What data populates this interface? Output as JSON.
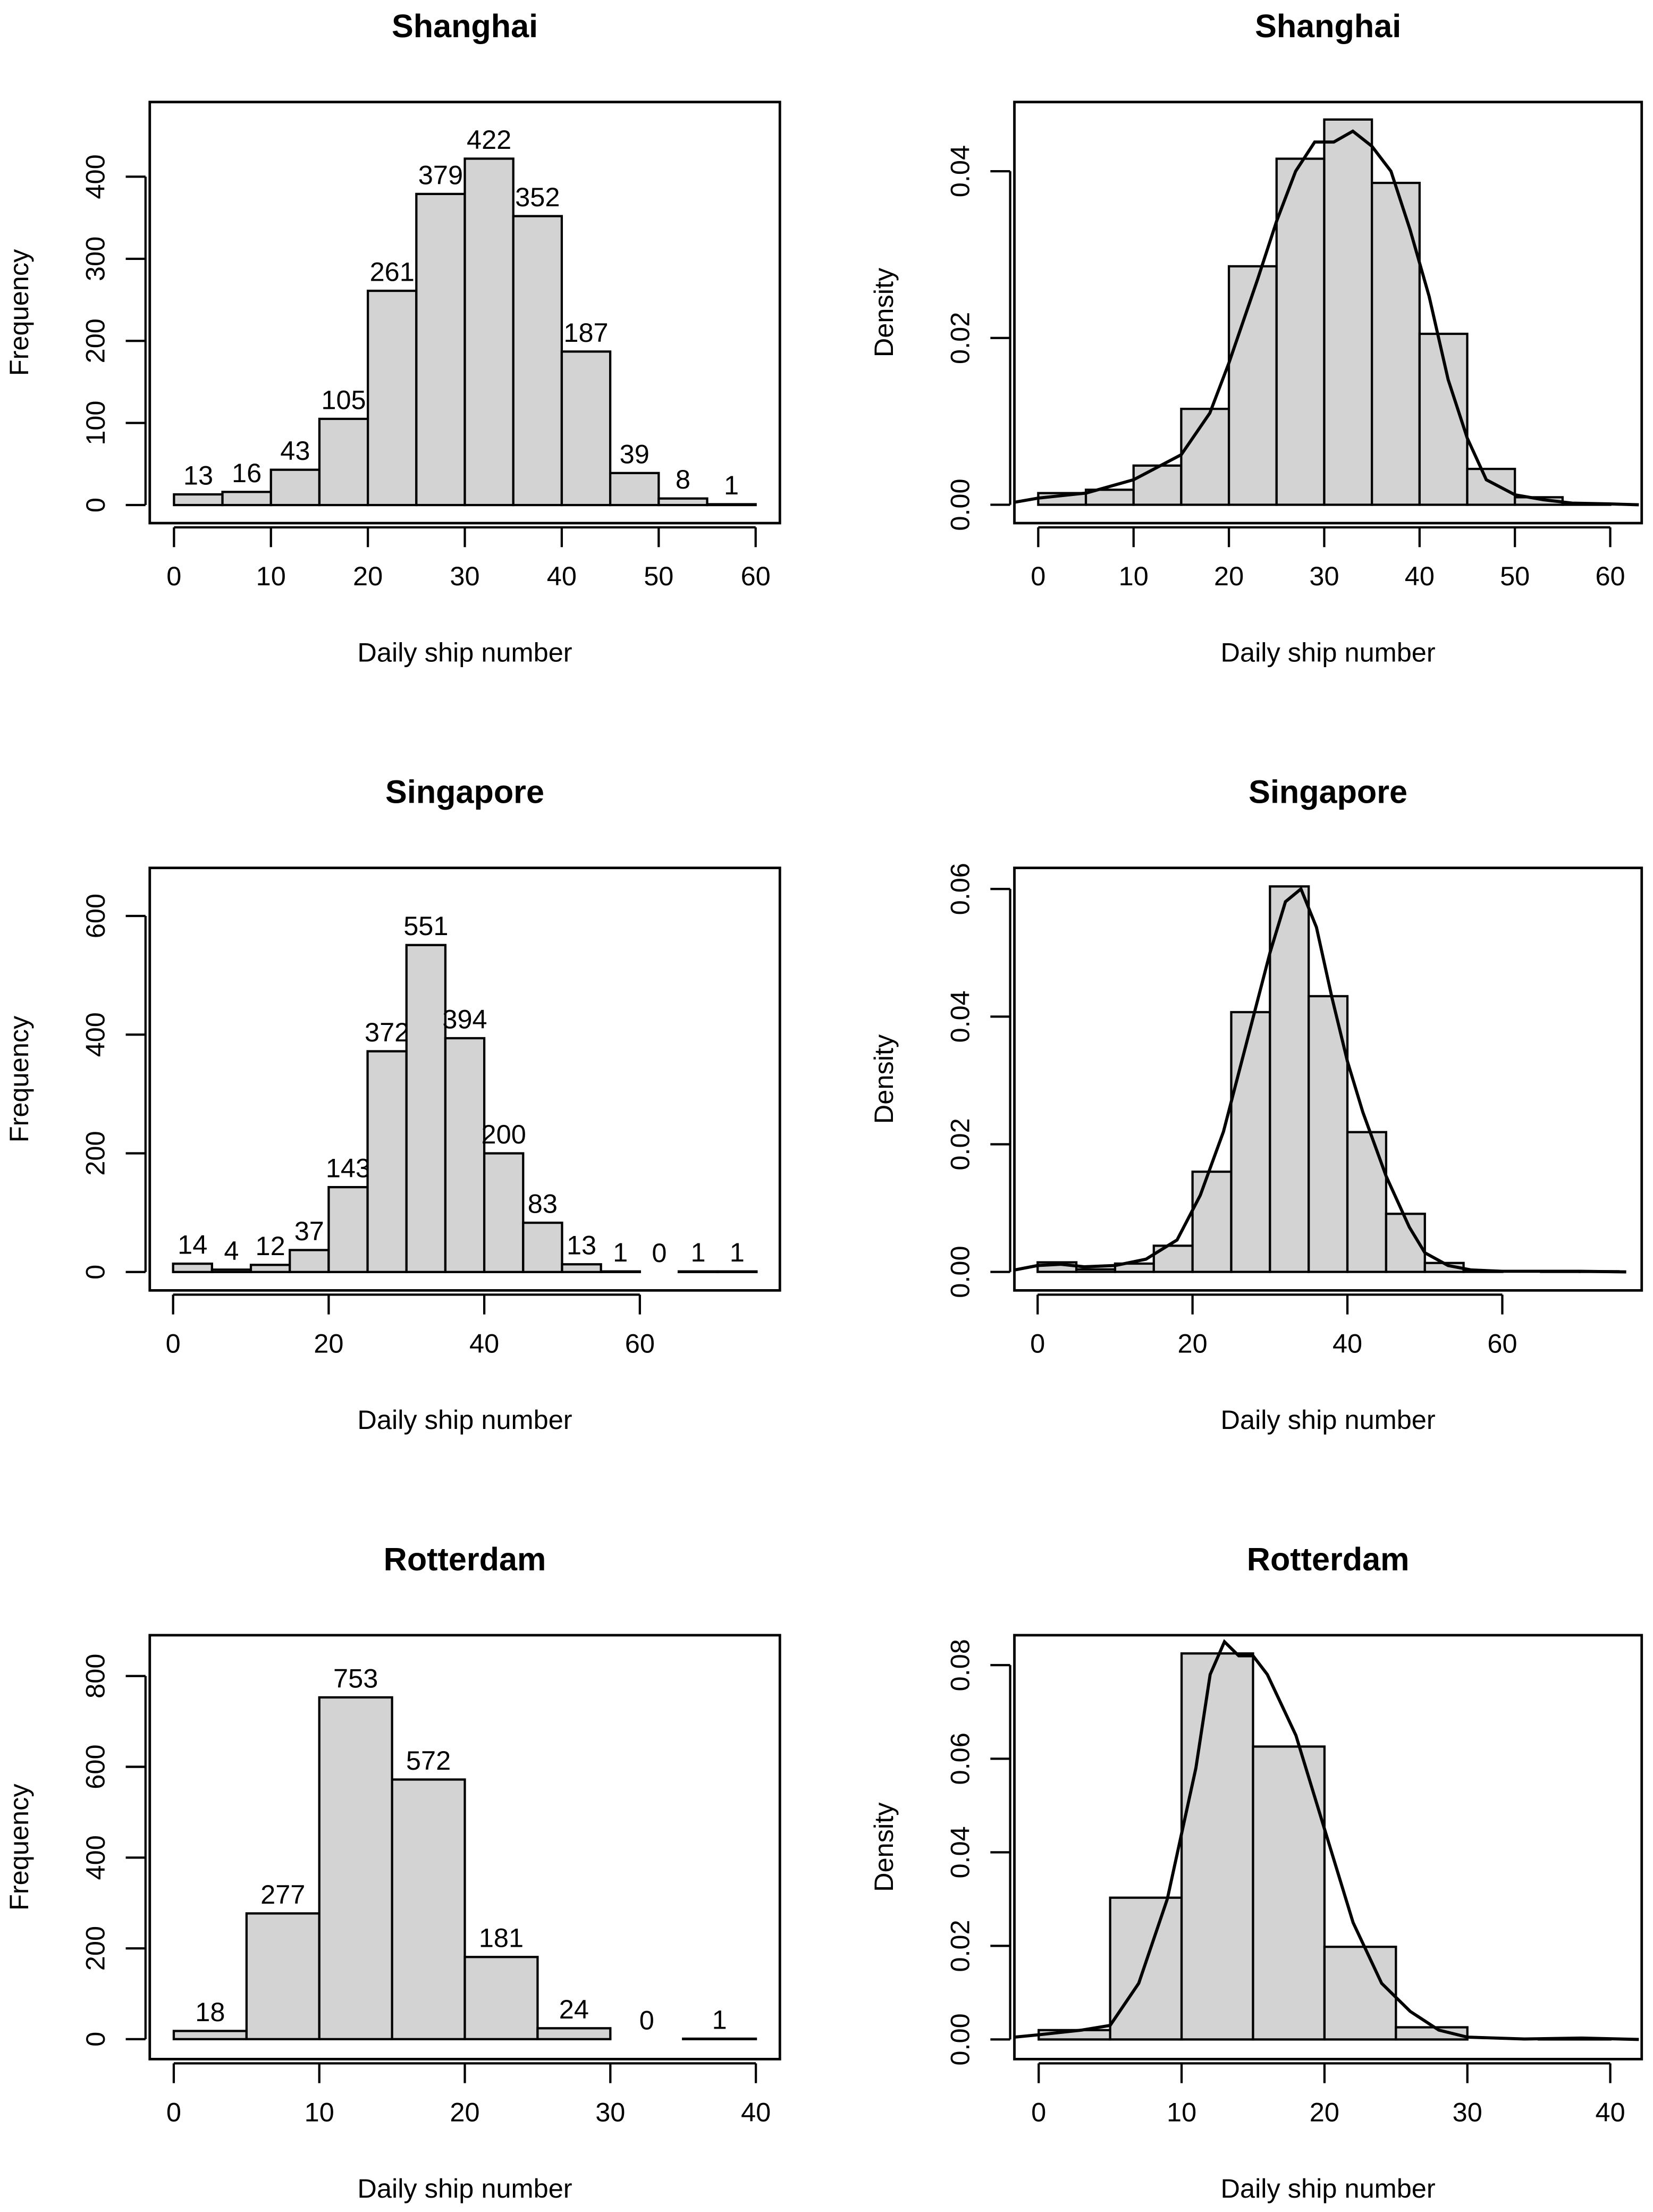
{
  "chart_data": [
    {
      "type": "histogram",
      "title": "Shanghai",
      "xlabel": "Daily ship number",
      "ylabel": "Frequency",
      "color": "#d3d3d3",
      "show_labels": true,
      "bins": [
        0,
        5,
        10,
        15,
        20,
        25,
        30,
        35,
        40,
        45,
        50,
        55,
        60
      ],
      "values": [
        13,
        16,
        43,
        105,
        261,
        379,
        422,
        352,
        187,
        39,
        8,
        1
      ],
      "xlim": [
        -2.5,
        62.5
      ],
      "xticks": [
        0,
        10,
        20,
        30,
        40,
        50,
        60
      ],
      "ylim": [
        -22,
        491
      ],
      "yticks": [
        0,
        100,
        200,
        300,
        400
      ]
    },
    {
      "type": "histogram",
      "title": "Shanghai",
      "xlabel": "Daily ship number",
      "ylabel": "Density",
      "color": "#d3d3d3",
      "show_labels": false,
      "bins": [
        0,
        5,
        10,
        15,
        20,
        25,
        30,
        35,
        40,
        45,
        50,
        55,
        60
      ],
      "values": [
        0.0014,
        0.0018,
        0.0047,
        0.0115,
        0.0286,
        0.0415,
        0.0462,
        0.0386,
        0.0205,
        0.0043,
        0.0009,
        0.0001
      ],
      "density": {
        "x": [
          -3,
          0,
          5,
          10,
          13,
          15,
          18,
          20,
          23,
          25,
          27,
          29,
          31,
          33,
          35,
          37,
          39,
          41,
          43,
          45,
          47,
          50,
          53,
          56,
          60,
          63
        ],
        "y": [
          0.0002,
          0.0008,
          0.0014,
          0.003,
          0.0048,
          0.006,
          0.011,
          0.017,
          0.027,
          0.034,
          0.04,
          0.0435,
          0.0435,
          0.0448,
          0.043,
          0.04,
          0.033,
          0.025,
          0.015,
          0.008,
          0.003,
          0.0012,
          0.0006,
          0.0002,
          0.0001,
          0.0
        ]
      },
      "xlim": [
        -2.5,
        63.3
      ],
      "xticks": [
        0,
        10,
        20,
        30,
        40,
        50,
        60
      ],
      "ylim": [
        -0.0022,
        0.0483
      ],
      "yticks": [
        {
          "value": 0,
          "label": "0.00"
        },
        {
          "value": 0.02,
          "label": "0.02"
        },
        {
          "value": 0.04,
          "label": "0.04"
        }
      ]
    },
    {
      "type": "histogram",
      "title": "Singapore",
      "xlabel": "Daily ship number",
      "ylabel": "Frequency",
      "color": "#d3d3d3",
      "show_labels": true,
      "bins": [
        0,
        5,
        10,
        15,
        20,
        25,
        30,
        35,
        40,
        45,
        50,
        55,
        60,
        65,
        70,
        75
      ],
      "values": [
        14,
        4,
        12,
        37,
        143,
        372,
        551,
        394,
        200,
        83,
        13,
        1,
        0,
        1,
        1
      ],
      "xlim": [
        -3,
        78
      ],
      "xticks": [
        0,
        20,
        40,
        60
      ],
      "ylim": [
        -31,
        681
      ],
      "yticks": [
        0,
        200,
        400,
        600
      ]
    },
    {
      "type": "histogram",
      "title": "Singapore",
      "xlabel": "Daily ship number",
      "ylabel": "Density",
      "color": "#d3d3d3",
      "show_labels": false,
      "bins": [
        0,
        5,
        10,
        15,
        20,
        25,
        30,
        35,
        40,
        45,
        50,
        55,
        60,
        65,
        70,
        75
      ],
      "values": [
        0.0015,
        0.0004,
        0.0013,
        0.0041,
        0.0157,
        0.0407,
        0.0604,
        0.0432,
        0.0219,
        0.0091,
        0.0014,
        0.0001,
        0,
        0.0001,
        0.0001
      ],
      "density": {
        "x": [
          -3,
          0,
          3,
          6,
          10,
          14,
          18,
          21,
          24,
          27,
          30,
          32,
          34,
          36,
          38,
          40,
          42,
          45,
          48,
          50,
          53,
          56,
          60,
          70,
          76
        ],
        "y": [
          0.0003,
          0.001,
          0.0012,
          0.0008,
          0.001,
          0.002,
          0.005,
          0.012,
          0.022,
          0.036,
          0.05,
          0.058,
          0.06,
          0.054,
          0.043,
          0.033,
          0.025,
          0.015,
          0.007,
          0.003,
          0.001,
          0.0003,
          0.0001,
          0.0001,
          0.0
        ]
      },
      "xlim": [
        -3,
        78
      ],
      "xticks": [
        0,
        20,
        40,
        60
      ],
      "ylim": [
        -0.0029,
        0.0633
      ],
      "yticks": [
        {
          "value": 0,
          "label": "0.00"
        },
        {
          "value": 0.02,
          "label": "0.02"
        },
        {
          "value": 0.04,
          "label": "0.04"
        },
        {
          "value": 0.06,
          "label": "0.06"
        }
      ]
    },
    {
      "type": "histogram",
      "title": "Rotterdam",
      "xlabel": "Daily ship number",
      "ylabel": "Frequency",
      "color": "#d3d3d3",
      "show_labels": true,
      "bins": [
        0,
        5,
        10,
        15,
        20,
        25,
        30,
        35,
        40
      ],
      "values": [
        18,
        277,
        753,
        572,
        181,
        24,
        0,
        1
      ],
      "xlim": [
        -1.65,
        41.65
      ],
      "xticks": [
        0,
        10,
        20,
        30,
        40
      ],
      "ylim": [
        -44,
        890
      ],
      "yticks": [
        0,
        200,
        400,
        600,
        800
      ]
    },
    {
      "type": "histogram",
      "title": "Rotterdam",
      "xlabel": "Daily ship number",
      "ylabel": "Density",
      "color": "#d3d3d3",
      "show_labels": false,
      "bins": [
        0,
        5,
        10,
        15,
        20,
        25,
        30,
        35,
        40
      ],
      "values": [
        0.002,
        0.0303,
        0.0825,
        0.0626,
        0.0198,
        0.0026,
        0,
        0.0001
      ],
      "density": {
        "x": [
          -1.7,
          0,
          3,
          5,
          7,
          9,
          11,
          12,
          13,
          14,
          15,
          16,
          18,
          20,
          22,
          24,
          26,
          28,
          30,
          34,
          38,
          42
        ],
        "y": [
          0.0005,
          0.001,
          0.002,
          0.003,
          0.012,
          0.03,
          0.058,
          0.078,
          0.085,
          0.082,
          0.082,
          0.078,
          0.065,
          0.045,
          0.025,
          0.012,
          0.006,
          0.002,
          0.0005,
          0.0001,
          0.0003,
          0.0
        ]
      },
      "xlim": [
        -1.7,
        42.2
      ],
      "xticks": [
        0,
        10,
        20,
        30,
        40
      ],
      "ylim": [
        -0.0042,
        0.0864
      ],
      "yticks": [
        {
          "value": 0,
          "label": "0.00"
        },
        {
          "value": 0.02,
          "label": "0.02"
        },
        {
          "value": 0.04,
          "label": "0.04"
        },
        {
          "value": 0.06,
          "label": "0.06"
        },
        {
          "value": 0.08,
          "label": "0.08"
        }
      ]
    }
  ]
}
